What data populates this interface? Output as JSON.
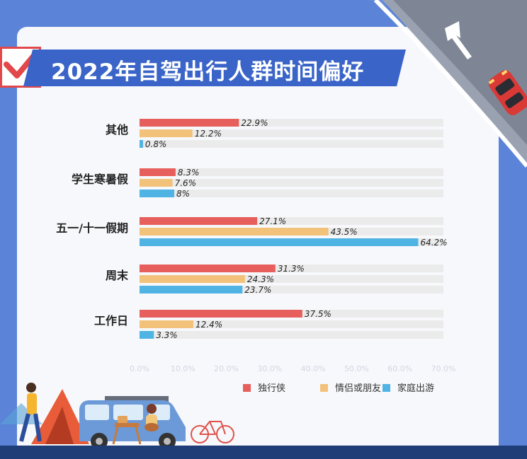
{
  "title": "2022年自驾出行人群时间偏好",
  "colors": {
    "solo": "#e65f5c",
    "couple": "#f2c27a",
    "family": "#4fb3e3",
    "track": "#ebebeb",
    "title_bg": "#3a64c8",
    "page_bg": "#5b84d8"
  },
  "chart_data": {
    "type": "bar",
    "orientation": "horizontal",
    "categories": [
      "其他",
      "学生寒暑假",
      "五一/十一假期",
      "周末",
      "工作日"
    ],
    "series": [
      {
        "name": "独行侠",
        "values": [
          22.9,
          8.3,
          27.1,
          31.3,
          37.5
        ],
        "labels": [
          "22.9%",
          "8.3%",
          "27.1%",
          "31.3%",
          "37.5%"
        ]
      },
      {
        "name": "情侣或朋友",
        "values": [
          12.2,
          7.6,
          43.5,
          24.3,
          12.4
        ],
        "labels": [
          "12.2%",
          "7.6%",
          "43.5%",
          "24.3%",
          "12.4%"
        ]
      },
      {
        "name": "家庭出游",
        "values": [
          0.8,
          8,
          64.2,
          23.7,
          3.3
        ],
        "labels": [
          "0.8%",
          "8%",
          "64.2%",
          "23.7%",
          "3.3%"
        ]
      }
    ],
    "xlim": [
      0,
      70
    ],
    "x_ticks": [
      "0.0%",
      "10.0%",
      "20.0%",
      "30.0%",
      "40.0%",
      "50.0%",
      "60.0%",
      "70.0%"
    ],
    "legend_position": "bottom-right",
    "grid": false
  }
}
